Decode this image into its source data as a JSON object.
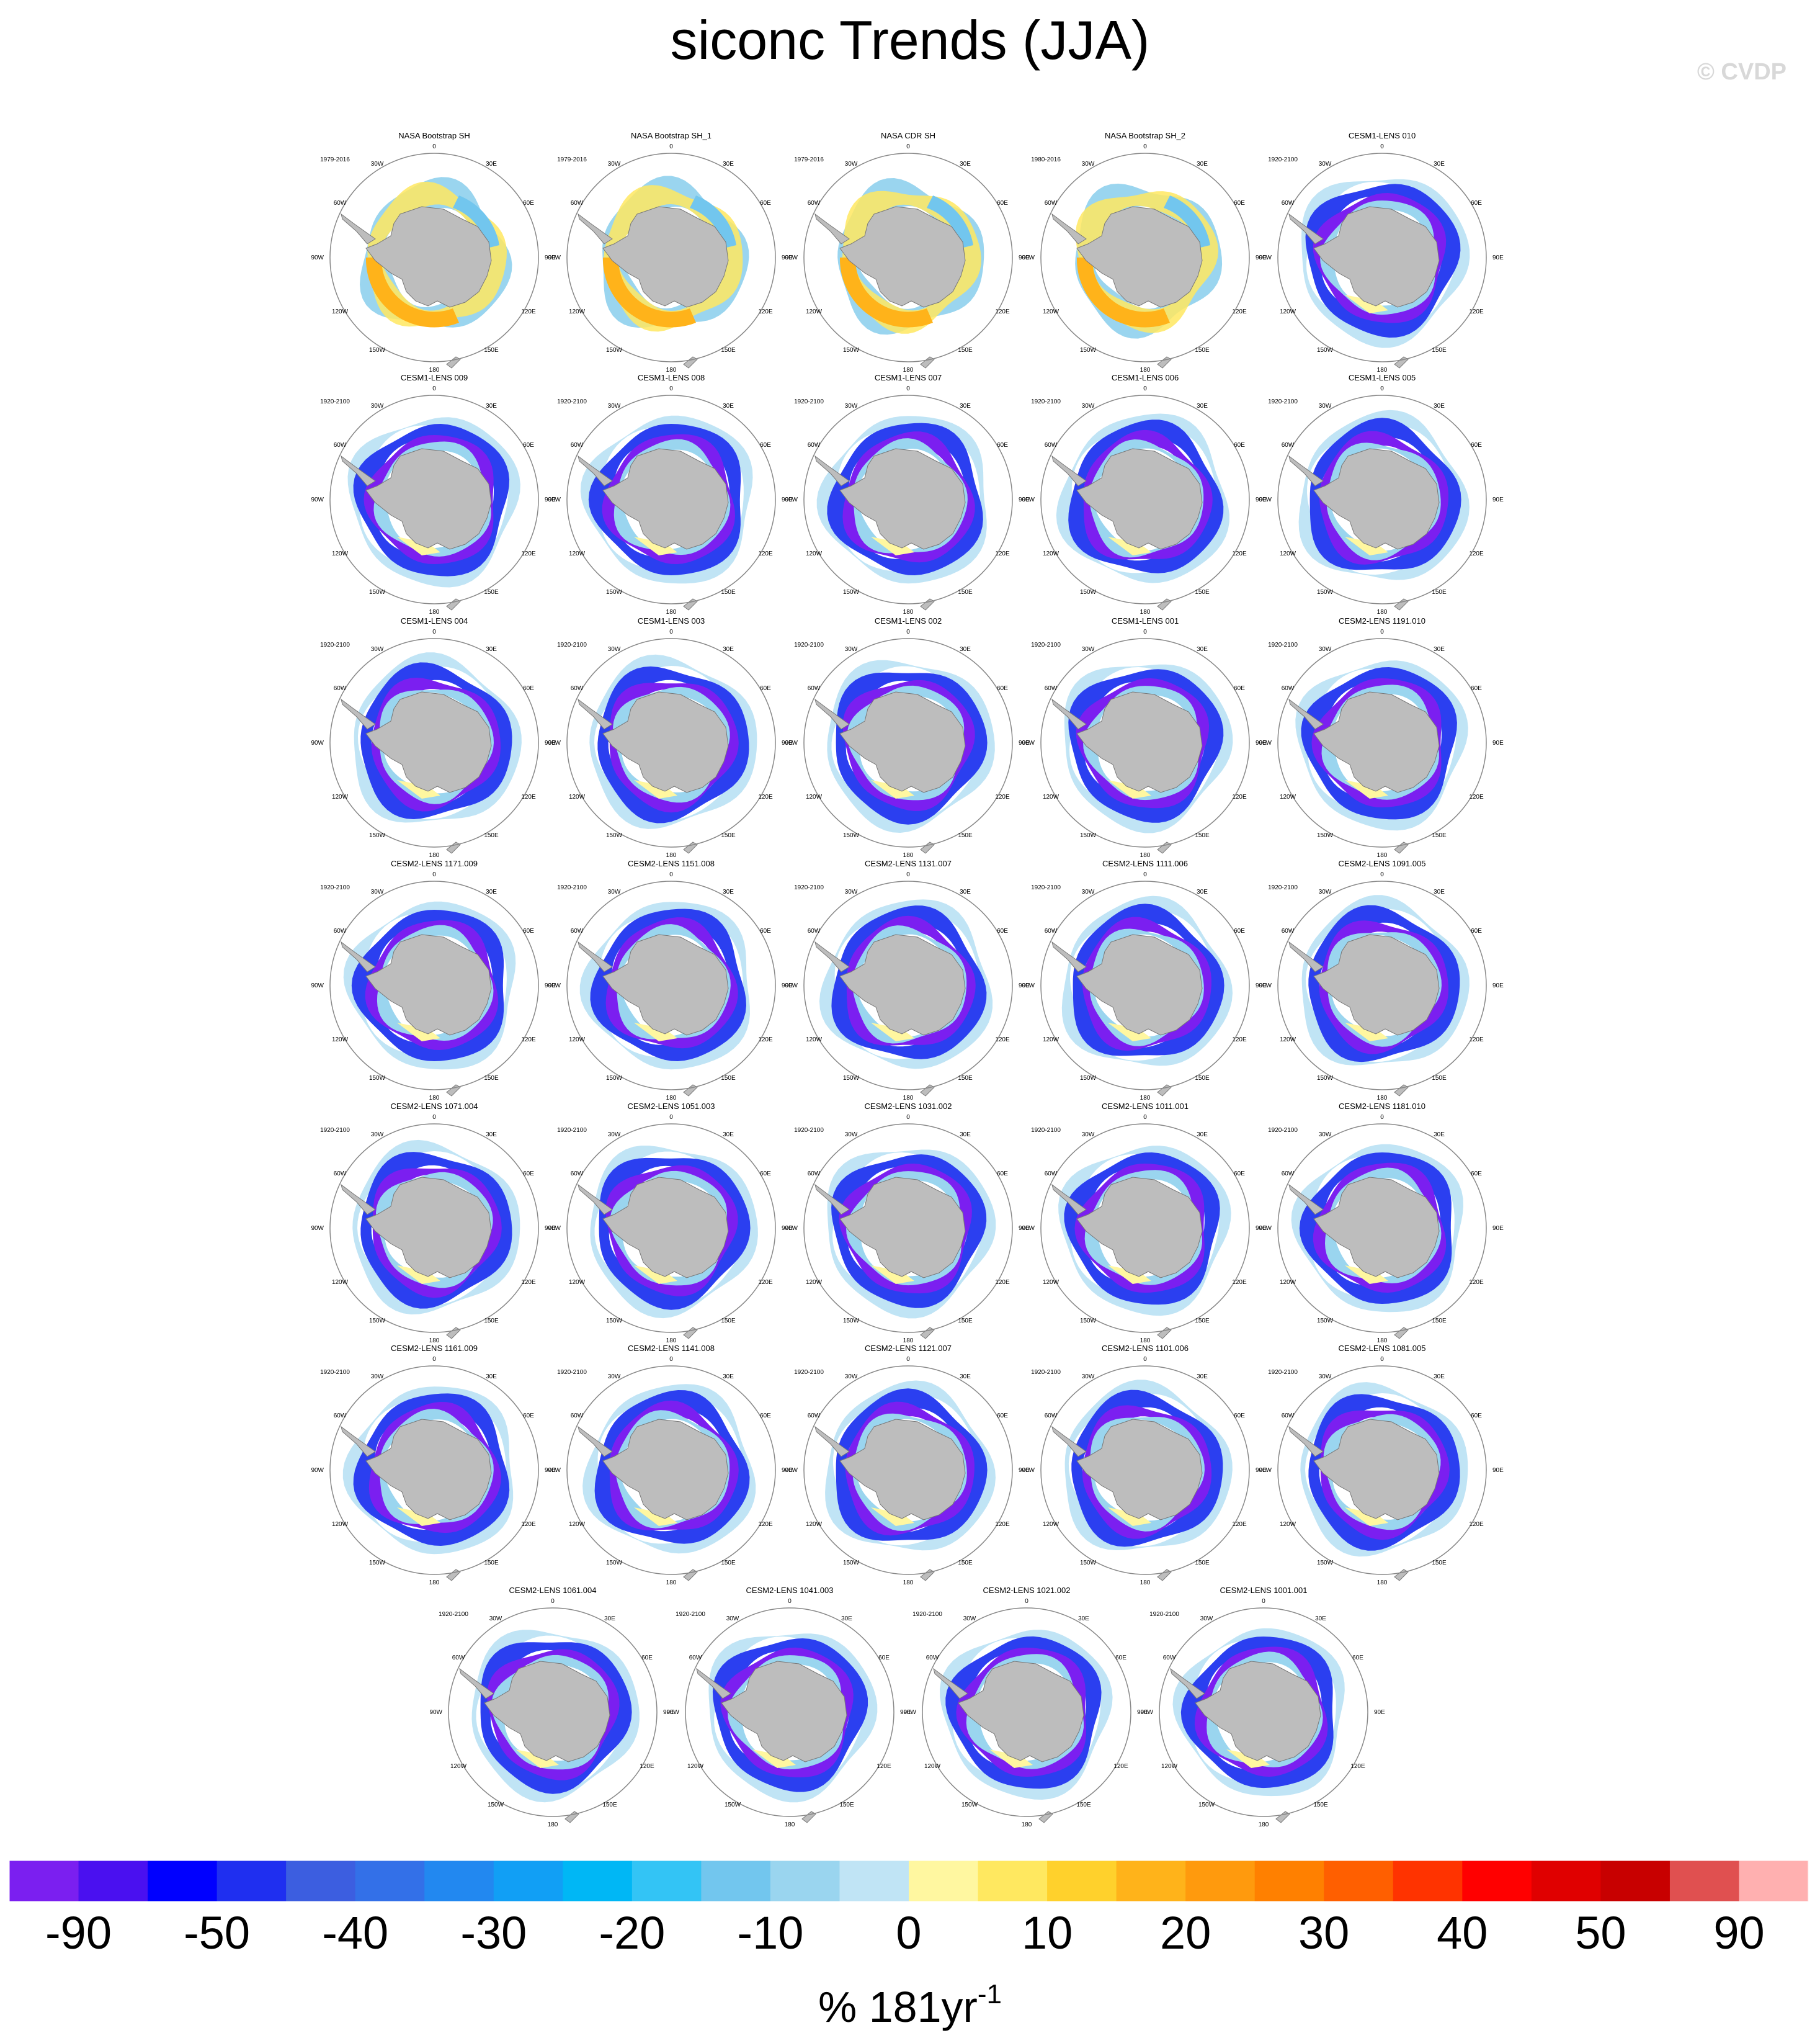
{
  "chart_data": {
    "type": "polar-map-panel",
    "title": "siconc Trends (JJA)",
    "watermark": "© CVDP",
    "colorbar": {
      "label_main": "% 181yr",
      "label_exp": "-1",
      "tick_labels": [
        "-90",
        "-50",
        "-40",
        "-30",
        "-20",
        "-10",
        "0",
        "10",
        "20",
        "30",
        "40",
        "50",
        "90"
      ],
      "colors": [
        "#7b1ff0",
        "#4a10f0",
        "#0000ff",
        "#1f2ff0",
        "#3c5ee0",
        "#3370e8",
        "#2288f0",
        "#119ff5",
        "#00b7f5",
        "#33c4f5",
        "#72c6ee",
        "#9ad5ef",
        "#c0e4f5",
        "#fff7a0",
        "#ffe860",
        "#ffd12c",
        "#ffb31a",
        "#ff9a0d",
        "#ff8000",
        "#ff5f00",
        "#ff3300",
        "#ff0000",
        "#e00000",
        "#c80000",
        "#e05050",
        "#ffb0b0"
      ]
    },
    "map_labels": {
      "top": "0",
      "top_left": "30W",
      "top_right": "30E",
      "left_upper": "60W",
      "right_upper": "60E",
      "left": "90W",
      "right": "90E",
      "left_lower": "120W",
      "right_lower": "120E",
      "bottom_left": "150W",
      "bottom_right": "150E",
      "bottom": "180"
    },
    "panels": [
      {
        "name": "NASA Bootstrap SH",
        "period": "1979-2016",
        "kind": "obs"
      },
      {
        "name": "NASA Bootstrap SH_1",
        "period": "1979-2016",
        "kind": "obs"
      },
      {
        "name": "NASA CDR SH",
        "period": "1979-2016",
        "kind": "obs"
      },
      {
        "name": "NASA Bootstrap SH_2",
        "period": "1980-2016",
        "kind": "obs"
      },
      {
        "name": "CESM1-LENS 010",
        "period": "1920-2100",
        "kind": "model"
      },
      {
        "name": "CESM1-LENS 009",
        "period": "1920-2100",
        "kind": "model"
      },
      {
        "name": "CESM1-LENS 008",
        "period": "1920-2100",
        "kind": "model"
      },
      {
        "name": "CESM1-LENS 007",
        "period": "1920-2100",
        "kind": "model"
      },
      {
        "name": "CESM1-LENS 006",
        "period": "1920-2100",
        "kind": "model"
      },
      {
        "name": "CESM1-LENS 005",
        "period": "1920-2100",
        "kind": "model"
      },
      {
        "name": "CESM1-LENS 004",
        "period": "1920-2100",
        "kind": "model"
      },
      {
        "name": "CESM1-LENS 003",
        "period": "1920-2100",
        "kind": "model"
      },
      {
        "name": "CESM1-LENS 002",
        "period": "1920-2100",
        "kind": "model"
      },
      {
        "name": "CESM1-LENS 001",
        "period": "1920-2100",
        "kind": "model"
      },
      {
        "name": "CESM2-LENS 1191.010",
        "period": "1920-2100",
        "kind": "model"
      },
      {
        "name": "CESM2-LENS 1171.009",
        "period": "1920-2100",
        "kind": "model"
      },
      {
        "name": "CESM2-LENS 1151.008",
        "period": "1920-2100",
        "kind": "model"
      },
      {
        "name": "CESM2-LENS 1131.007",
        "period": "1920-2100",
        "kind": "model"
      },
      {
        "name": "CESM2-LENS 1111.006",
        "period": "1920-2100",
        "kind": "model"
      },
      {
        "name": "CESM2-LENS 1091.005",
        "period": "1920-2100",
        "kind": "model"
      },
      {
        "name": "CESM2-LENS 1071.004",
        "period": "1920-2100",
        "kind": "model"
      },
      {
        "name": "CESM2-LENS 1051.003",
        "period": "1920-2100",
        "kind": "model"
      },
      {
        "name": "CESM2-LENS 1031.002",
        "period": "1920-2100",
        "kind": "model"
      },
      {
        "name": "CESM2-LENS 1011.001",
        "period": "1920-2100",
        "kind": "model"
      },
      {
        "name": "CESM2-LENS 1181.010",
        "period": "1920-2100",
        "kind": "model"
      },
      {
        "name": "CESM2-LENS 1161.009",
        "period": "1920-2100",
        "kind": "model"
      },
      {
        "name": "CESM2-LENS 1141.008",
        "period": "1920-2100",
        "kind": "model"
      },
      {
        "name": "CESM2-LENS 1121.007",
        "period": "1920-2100",
        "kind": "model"
      },
      {
        "name": "CESM2-LENS 1101.006",
        "period": "1920-2100",
        "kind": "model"
      },
      {
        "name": "CESM2-LENS 1081.005",
        "period": "1920-2100",
        "kind": "model"
      },
      {
        "name": "CESM2-LENS 1061.004",
        "period": "1920-2100",
        "kind": "model"
      },
      {
        "name": "CESM2-LENS 1041.003",
        "period": "1920-2100",
        "kind": "model"
      },
      {
        "name": "CESM2-LENS 1021.002",
        "period": "1920-2100",
        "kind": "model"
      },
      {
        "name": "CESM2-LENS 1001.001",
        "period": "1920-2100",
        "kind": "model"
      }
    ]
  }
}
